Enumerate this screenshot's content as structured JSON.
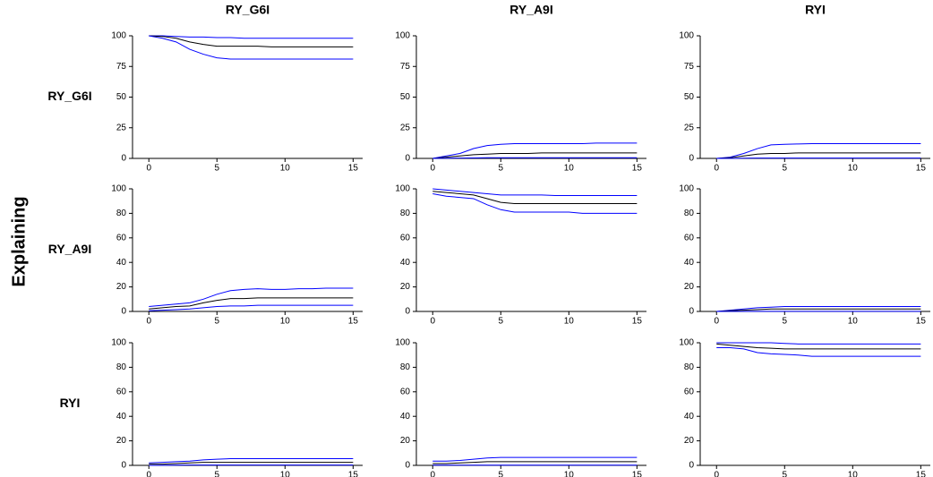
{
  "figure": {
    "column_titles": [
      "RY_G6I",
      "RY_A9I",
      "RYI"
    ],
    "row_titles": [
      "RY_G6I",
      "RY_A9I",
      "RYI"
    ],
    "ylabel": "Explaining"
  },
  "chart_data": [
    {
      "type": "line",
      "x": [
        0,
        1,
        2,
        3,
        4,
        5,
        6,
        7,
        8,
        9,
        10,
        11,
        12,
        13,
        14,
        15
      ],
      "xlim": [
        -1.2,
        15.7
      ],
      "xticks": [
        0,
        5,
        10,
        15
      ],
      "ylim": [
        0,
        100
      ],
      "yticks": [
        0,
        25,
        50,
        75,
        100
      ],
      "series": [
        {
          "color": "#0000ff",
          "values": [
            100,
            100,
            99.5,
            99,
            99,
            98.5,
            98.5,
            98,
            98,
            98,
            98,
            98,
            98,
            98,
            98,
            98
          ]
        },
        {
          "color": "#000000",
          "values": [
            100,
            99.5,
            98,
            95,
            93,
            91.5,
            91.5,
            91.5,
            91.5,
            91,
            91,
            91,
            91,
            91,
            91,
            91
          ]
        },
        {
          "color": "#0000ff",
          "values": [
            100,
            98,
            95,
            89,
            85,
            82,
            81,
            81,
            81,
            81,
            81,
            81,
            81,
            81,
            81,
            81
          ]
        }
      ]
    },
    {
      "type": "line",
      "x": [
        0,
        1,
        2,
        3,
        4,
        5,
        6,
        7,
        8,
        9,
        10,
        11,
        12,
        13,
        14,
        15
      ],
      "xlim": [
        -1.2,
        15.7
      ],
      "xticks": [
        0,
        5,
        10,
        15
      ],
      "ylim": [
        0,
        100
      ],
      "yticks": [
        0,
        25,
        50,
        75,
        100
      ],
      "series": [
        {
          "color": "#0000ff",
          "values": [
            0,
            2,
            4,
            8,
            10.5,
            11.5,
            12,
            12,
            12,
            12,
            12,
            12,
            12.5,
            12.5,
            12.5,
            12.5
          ]
        },
        {
          "color": "#000000",
          "values": [
            0,
            1,
            2,
            3,
            3.5,
            4,
            4,
            4,
            4.5,
            4.5,
            4.5,
            4.5,
            4.5,
            4.5,
            4.5,
            4.5
          ]
        },
        {
          "color": "#0000ff",
          "values": [
            0,
            0.2,
            0.3,
            0.4,
            0.5,
            0.5,
            0.5,
            0.5,
            0.5,
            0.5,
            0.5,
            0.5,
            0.5,
            0.5,
            0.5,
            0.5
          ]
        }
      ]
    },
    {
      "type": "line",
      "x": [
        0,
        1,
        2,
        3,
        4,
        5,
        6,
        7,
        8,
        9,
        10,
        11,
        12,
        13,
        14,
        15
      ],
      "xlim": [
        -1.2,
        15.7
      ],
      "xticks": [
        0,
        5,
        10,
        15
      ],
      "ylim": [
        0,
        100
      ],
      "yticks": [
        0,
        25,
        50,
        75,
        100
      ],
      "series": [
        {
          "color": "#0000ff",
          "values": [
            0,
            1,
            4,
            8,
            11,
            11.5,
            11.8,
            12,
            12,
            12,
            12,
            12,
            12,
            12,
            12,
            12
          ]
        },
        {
          "color": "#000000",
          "values": [
            0,
            0.5,
            2,
            3.5,
            4,
            4,
            4.5,
            4.5,
            4.5,
            4.5,
            4.5,
            4.5,
            4.5,
            4.5,
            4.5,
            4.5
          ]
        },
        {
          "color": "#0000ff",
          "values": [
            0,
            0,
            0.2,
            0.3,
            0.3,
            0.3,
            0.3,
            0.3,
            0.3,
            0.3,
            0.3,
            0.3,
            0.3,
            0.3,
            0.3,
            0.3
          ]
        }
      ]
    },
    {
      "type": "line",
      "x": [
        0,
        1,
        2,
        3,
        4,
        5,
        6,
        7,
        8,
        9,
        10,
        11,
        12,
        13,
        14,
        15
      ],
      "xlim": [
        -1.2,
        15.7
      ],
      "xticks": [
        0,
        5,
        10,
        15
      ],
      "ylim": [
        0,
        100
      ],
      "yticks": [
        0,
        20,
        40,
        60,
        80,
        100
      ],
      "series": [
        {
          "color": "#0000ff",
          "values": [
            4,
            5,
            6,
            7,
            10,
            14,
            17,
            18,
            18.5,
            18,
            18,
            18.5,
            18.5,
            19,
            19,
            19
          ]
        },
        {
          "color": "#000000",
          "values": [
            2,
            3,
            4,
            4.5,
            7,
            9,
            10.5,
            10.5,
            11,
            11,
            11,
            11,
            11,
            11,
            11,
            11
          ]
        },
        {
          "color": "#0000ff",
          "values": [
            0.5,
            1,
            1.5,
            2,
            3,
            4,
            4.5,
            4.5,
            5,
            5,
            5,
            5,
            5,
            5,
            5,
            5
          ]
        }
      ]
    },
    {
      "type": "line",
      "x": [
        0,
        1,
        2,
        3,
        4,
        5,
        6,
        7,
        8,
        9,
        10,
        11,
        12,
        13,
        14,
        15
      ],
      "xlim": [
        -1.2,
        15.7
      ],
      "xticks": [
        0,
        5,
        10,
        15
      ],
      "ylim": [
        0,
        100
      ],
      "yticks": [
        0,
        20,
        40,
        60,
        80,
        100
      ],
      "series": [
        {
          "color": "#0000ff",
          "values": [
            100,
            99,
            98,
            97,
            96,
            95,
            95,
            95,
            95,
            94.5,
            94.5,
            94.5,
            94.5,
            94.5,
            94.5,
            94.5
          ]
        },
        {
          "color": "#000000",
          "values": [
            98,
            97,
            96,
            95,
            92,
            89,
            88,
            88,
            88,
            88,
            88,
            88,
            88,
            88,
            88,
            88
          ]
        },
        {
          "color": "#0000ff",
          "values": [
            96,
            94,
            93,
            92,
            87,
            83,
            81,
            81,
            81,
            81,
            81,
            80,
            80,
            80,
            80,
            80
          ]
        }
      ]
    },
    {
      "type": "line",
      "x": [
        0,
        1,
        2,
        3,
        4,
        5,
        6,
        7,
        8,
        9,
        10,
        11,
        12,
        13,
        14,
        15
      ],
      "xlim": [
        -1.2,
        15.7
      ],
      "xticks": [
        0,
        5,
        10,
        15
      ],
      "ylim": [
        0,
        100
      ],
      "yticks": [
        0,
        20,
        40,
        60,
        80,
        100
      ],
      "series": [
        {
          "color": "#0000ff",
          "values": [
            0,
            1,
            2,
            3,
            3.5,
            4,
            4,
            4,
            4,
            4,
            4,
            4,
            4,
            4,
            4,
            4
          ]
        },
        {
          "color": "#000000",
          "values": [
            0,
            0.5,
            1,
            1.5,
            2,
            2,
            2,
            2,
            2,
            2,
            2,
            2,
            2,
            2,
            2,
            2
          ]
        },
        {
          "color": "#0000ff",
          "values": [
            0,
            0,
            0.1,
            0.1,
            0.1,
            0.1,
            0.1,
            0.1,
            0.1,
            0.1,
            0.1,
            0.1,
            0.1,
            0.1,
            0.1,
            0.1
          ]
        }
      ]
    },
    {
      "type": "line",
      "x": [
        0,
        1,
        2,
        3,
        4,
        5,
        6,
        7,
        8,
        9,
        10,
        11,
        12,
        13,
        14,
        15
      ],
      "xlim": [
        -1.2,
        15.7
      ],
      "xticks": [
        0,
        5,
        10,
        15
      ],
      "ylim": [
        0,
        100
      ],
      "yticks": [
        0,
        20,
        40,
        60,
        80,
        100
      ],
      "series": [
        {
          "color": "#0000ff",
          "values": [
            2,
            2.5,
            3,
            3.5,
            4.5,
            5,
            5.5,
            5.5,
            5.5,
            5.5,
            5.5,
            5.5,
            5.5,
            5.5,
            5.5,
            5.5
          ]
        },
        {
          "color": "#000000",
          "values": [
            1,
            1,
            1.5,
            2,
            2.5,
            2.5,
            2.5,
            2.5,
            2.5,
            2.5,
            2.5,
            2.5,
            2.5,
            2.5,
            2.5,
            2.5
          ]
        },
        {
          "color": "#0000ff",
          "values": [
            0,
            0.1,
            0.2,
            0.3,
            0.3,
            0.3,
            0.3,
            0.3,
            0.3,
            0.3,
            0.3,
            0.3,
            0.3,
            0.3,
            0.3,
            0.3
          ]
        }
      ]
    },
    {
      "type": "line",
      "x": [
        0,
        1,
        2,
        3,
        4,
        5,
        6,
        7,
        8,
        9,
        10,
        11,
        12,
        13,
        14,
        15
      ],
      "xlim": [
        -1.2,
        15.7
      ],
      "xticks": [
        0,
        5,
        10,
        15
      ],
      "ylim": [
        0,
        100
      ],
      "yticks": [
        0,
        20,
        40,
        60,
        80,
        100
      ],
      "series": [
        {
          "color": "#0000ff",
          "values": [
            3.5,
            3.5,
            4,
            5,
            6,
            6.5,
            6.5,
            6.5,
            6.5,
            6.5,
            6.5,
            6.5,
            6.5,
            6.5,
            6.5,
            6.5
          ]
        },
        {
          "color": "#000000",
          "values": [
            1.5,
            1.5,
            2,
            2.5,
            3,
            3,
            3,
            3,
            3,
            3,
            3,
            3,
            3,
            3,
            3,
            3
          ]
        },
        {
          "color": "#0000ff",
          "values": [
            0.2,
            0.2,
            0.2,
            0.2,
            0.2,
            0.2,
            0.2,
            0.2,
            0.2,
            0.2,
            0.2,
            0.2,
            0.2,
            0.2,
            0.2,
            0.2
          ]
        }
      ]
    },
    {
      "type": "line",
      "x": [
        0,
        1,
        2,
        3,
        4,
        5,
        6,
        7,
        8,
        9,
        10,
        11,
        12,
        13,
        14,
        15
      ],
      "xlim": [
        -1.2,
        15.7
      ],
      "xticks": [
        0,
        5,
        10,
        15
      ],
      "ylim": [
        0,
        100
      ],
      "yticks": [
        0,
        20,
        40,
        60,
        80,
        100
      ],
      "series": [
        {
          "color": "#0000ff",
          "values": [
            100,
            100,
            100,
            100,
            100,
            99.5,
            99,
            99,
            99,
            99,
            99,
            99,
            99,
            99,
            99,
            99
          ]
        },
        {
          "color": "#000000",
          "values": [
            99,
            98,
            97,
            96,
            95.5,
            95,
            95,
            95,
            95,
            95,
            95,
            95,
            95,
            95,
            95,
            95
          ]
        },
        {
          "color": "#0000ff",
          "values": [
            96,
            96,
            95,
            92,
            91,
            90.5,
            90,
            89,
            89,
            89,
            89,
            89,
            89,
            89,
            89,
            89
          ]
        }
      ]
    }
  ]
}
